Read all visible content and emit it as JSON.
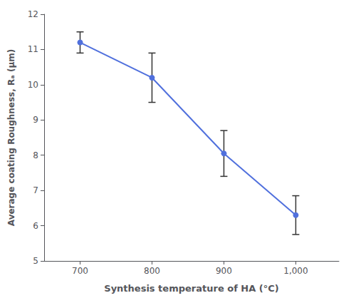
{
  "chart_data": {
    "type": "line",
    "xlabel": "Synthesis temperature of HA (°C)",
    "ylabel": "Average coating Roughness, Rₐ (µm)",
    "x": [
      700,
      800,
      900,
      1000
    ],
    "values": [
      11.2,
      10.2,
      8.05,
      6.3
    ],
    "yerr": [
      0.3,
      0.7,
      0.65,
      0.55
    ],
    "xlim": [
      650,
      1060
    ],
    "ylim": [
      5,
      12
    ],
    "xticks": [
      700,
      800,
      900,
      1000
    ],
    "yticks": [
      5,
      6,
      7,
      8,
      9,
      10,
      11,
      12
    ],
    "marker": "circle",
    "grid": false
  }
}
